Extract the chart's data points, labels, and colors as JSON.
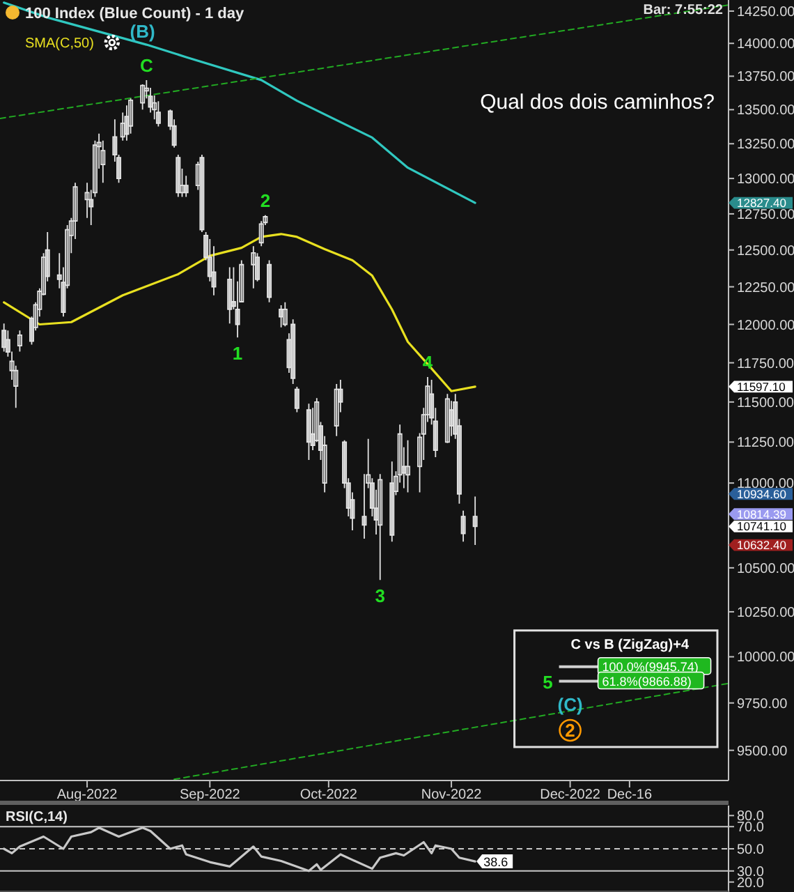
{
  "chart_data": [
    {
      "type": "candlestick",
      "title": "100 Index (Blue Count) - 1 day",
      "log": true,
      "legend": "top left",
      "xlim": [
        "2022-07-10",
        "2023-01-10"
      ],
      "xticks": [
        {
          "value": "2022-08-01",
          "label": "Aug-2022"
        },
        {
          "value": "2022-09-01",
          "label": "Sep-2022"
        },
        {
          "value": "2022-10-01",
          "label": "Oct-2022"
        },
        {
          "value": "2022-11-01",
          "label": "Nov-2022"
        },
        {
          "value": "2022-12-01",
          "label": "Dec-2022"
        },
        {
          "value": "2022-12-16",
          "label": "Dec-16"
        }
      ],
      "ylim": [
        9344,
        14337
      ],
      "yticks": [
        {
          "value": 9500,
          "label": "9500.00"
        },
        {
          "value": 9750,
          "label": "9750.00"
        },
        {
          "value": 10000,
          "label": "10000.00"
        },
        {
          "value": 10250,
          "label": "10250.00"
        },
        {
          "value": 10500,
          "label": "10500.00"
        },
        {
          "value": 11000,
          "label": "11000.00"
        },
        {
          "value": 11250,
          "label": "11250.00"
        },
        {
          "value": 11500,
          "label": "11500.00"
        },
        {
          "value": 11750,
          "label": "11750.00"
        },
        {
          "value": 12000,
          "label": "12000.00"
        },
        {
          "value": 12250,
          "label": "12250.00"
        },
        {
          "value": 12500,
          "label": "12500.00"
        },
        {
          "value": 12750,
          "label": "12750.00"
        },
        {
          "value": 13000,
          "label": "13000.00"
        },
        {
          "value": 13250,
          "label": "13250.00"
        },
        {
          "value": 13500,
          "label": "13500.00"
        },
        {
          "value": 13750,
          "label": "13750.00"
        },
        {
          "value": 14000,
          "label": "14000.00"
        },
        {
          "value": 14250,
          "label": "14250.00"
        },
        {
          "value": 12827.4,
          "label": "12827.40"
        },
        {
          "value": 11597.1,
          "label": "11597.10"
        },
        {
          "value": 10934.6,
          "label": "10934.60"
        },
        {
          "value": 10814.39,
          "label": "10814.39"
        },
        {
          "value": 10741.1,
          "label": "10741.10"
        },
        {
          "value": 10632.4,
          "label": "10632.40"
        }
      ],
      "x": [
        "2022-07-11",
        "2022-07-12",
        "2022-07-13",
        "2022-07-14",
        "2022-07-15",
        "2022-07-18",
        "2022-07-19",
        "2022-07-20",
        "2022-07-21",
        "2022-07-22",
        "2022-07-25",
        "2022-07-26",
        "2022-07-27",
        "2022-07-28",
        "2022-07-29",
        "2022-08-01",
        "2022-08-02",
        "2022-08-03",
        "2022-08-04",
        "2022-08-05",
        "2022-08-08",
        "2022-08-09",
        "2022-08-10",
        "2022-08-11",
        "2022-08-12",
        "2022-08-15",
        "2022-08-16",
        "2022-08-17",
        "2022-08-18",
        "2022-08-19",
        "2022-08-22",
        "2022-08-23",
        "2022-08-24",
        "2022-08-25",
        "2022-08-26",
        "2022-08-29",
        "2022-08-30",
        "2022-08-31",
        "2022-09-01",
        "2022-09-02",
        "2022-09-06",
        "2022-09-07",
        "2022-09-08",
        "2022-09-09",
        "2022-09-12",
        "2022-09-13",
        "2022-09-14",
        "2022-09-15",
        "2022-09-16",
        "2022-09-19",
        "2022-09-20",
        "2022-09-21",
        "2022-09-22",
        "2022-09-23",
        "2022-09-26",
        "2022-09-27",
        "2022-09-28",
        "2022-09-29",
        "2022-09-30",
        "2022-10-03",
        "2022-10-04",
        "2022-10-05",
        "2022-10-06",
        "2022-10-07",
        "2022-10-10",
        "2022-10-11",
        "2022-10-12",
        "2022-10-13",
        "2022-10-14",
        "2022-10-17",
        "2022-10-18",
        "2022-10-19",
        "2022-10-20",
        "2022-10-21",
        "2022-10-24",
        "2022-10-25",
        "2022-10-26",
        "2022-10-27",
        "2022-10-28",
        "2022-10-31",
        "2022-11-01",
        "2022-11-02",
        "2022-11-03",
        "2022-11-04",
        "2022-11-07"
      ],
      "ohlc": [
        [
          11960,
          12006,
          11822,
          11850
        ],
        [
          11900,
          11960,
          11790,
          11820
        ],
        [
          11700,
          11822,
          11641,
          11760
        ],
        [
          11600,
          11731,
          11463,
          11700
        ],
        [
          11860,
          11960,
          11822,
          11930
        ],
        [
          12040,
          12052,
          11868,
          11890
        ],
        [
          11980,
          12146,
          11960,
          12130
        ],
        [
          12100,
          12240,
          12052,
          12220
        ],
        [
          12200,
          12478,
          12193,
          12450
        ],
        [
          12500,
          12624,
          12287,
          12320
        ],
        [
          12330,
          12478,
          12240,
          12300
        ],
        [
          12280,
          12382,
          12052,
          12080
        ],
        [
          12260,
          12672,
          12240,
          12640
        ],
        [
          12600,
          12721,
          12478,
          12700
        ],
        [
          12700,
          12969,
          12575,
          12940
        ],
        [
          12850,
          12969,
          12721,
          12900
        ],
        [
          12850,
          12919,
          12672,
          12800
        ],
        [
          12900,
          13273,
          12870,
          13240
        ],
        [
          13230,
          13324,
          13070,
          13260
        ],
        [
          13100,
          13273,
          12969,
          13200
        ],
        [
          13300,
          13428,
          13120,
          13170
        ],
        [
          13150,
          13171,
          12969,
          13000
        ],
        [
          13300,
          13479,
          13273,
          13400
        ],
        [
          13450,
          13532,
          13273,
          13320
        ],
        [
          13380,
          13584,
          13324,
          13570
        ],
        [
          13550,
          13689,
          13500,
          13680
        ],
        [
          13640,
          13721,
          13584,
          13660
        ],
        [
          13600,
          13663,
          13479,
          13520
        ],
        [
          13500,
          13605,
          13428,
          13550
        ],
        [
          13480,
          13563,
          13376,
          13400
        ],
        [
          13490,
          13500,
          13350,
          13380
        ],
        [
          13380,
          13428,
          13222,
          13240
        ],
        [
          13150,
          13171,
          12870,
          12900
        ],
        [
          12900,
          13070,
          12870,
          12950
        ],
        [
          12950,
          13019,
          12870,
          12900
        ],
        [
          12950,
          13120,
          12919,
          13100
        ],
        [
          13150,
          13171,
          12624,
          12640
        ],
        [
          12600,
          12624,
          12430,
          12450
        ],
        [
          12450,
          12575,
          12287,
          12320
        ],
        [
          12350,
          12526,
          12193,
          12250
        ],
        [
          12300,
          12382,
          12006,
          12100
        ],
        [
          12150,
          12382,
          12099,
          12120
        ],
        [
          12100,
          12287,
          11914,
          12000
        ],
        [
          12150,
          12430,
          12146,
          12400
        ],
        [
          12400,
          12526,
          12240,
          12480
        ],
        [
          12450,
          12478,
          12287,
          12300
        ],
        [
          12550,
          12700,
          12526,
          12680
        ],
        [
          12690,
          12741,
          12672,
          12730
        ],
        [
          12400,
          12430,
          12146,
          12180
        ],
        [
          12100,
          12127,
          11980,
          12050
        ],
        [
          12000,
          12146,
          11988,
          12100
        ],
        [
          11900,
          11942,
          11686,
          11720
        ],
        [
          12000,
          12033,
          11614,
          11650
        ],
        [
          11580,
          11596,
          11436,
          11460
        ],
        [
          11450,
          11489,
          11140,
          11250
        ],
        [
          11300,
          11463,
          11200,
          11230
        ],
        [
          11260,
          11525,
          11250,
          11500
        ],
        [
          11350,
          11375,
          11140,
          11200
        ],
        [
          11000,
          11287,
          10944,
          11230
        ],
        [
          11350,
          11614,
          11287,
          11580
        ],
        [
          11580,
          11641,
          11436,
          11500
        ],
        [
          11250,
          11261,
          10969,
          11000
        ],
        [
          11000,
          11029,
          10801,
          10850
        ],
        [
          10900,
          10944,
          10718,
          10790
        ],
        [
          10800,
          11054,
          10669,
          10750
        ],
        [
          11000,
          11270,
          10969,
          11050
        ],
        [
          11000,
          11029,
          10801,
          10850
        ],
        [
          10850,
          10960,
          10694,
          10780
        ],
        [
          10750,
          11054,
          10430,
          11020
        ],
        [
          11000,
          11131,
          10652,
          10690
        ],
        [
          10950,
          11071,
          10927,
          11040
        ],
        [
          11050,
          11358,
          11003,
          11300
        ],
        [
          11100,
          11218,
          10969,
          11060
        ],
        [
          11050,
          11261,
          10944,
          11100
        ],
        [
          11100,
          11305,
          10944,
          11280
        ],
        [
          11300,
          11463,
          11140,
          11420
        ],
        [
          11420,
          11659,
          11375,
          11600
        ],
        [
          11550,
          11641,
          11358,
          11400
        ],
        [
          11380,
          11463,
          11157,
          11200
        ],
        [
          11250,
          11551,
          11244,
          11520
        ],
        [
          11450,
          11507,
          11287,
          11350
        ],
        [
          11500,
          11551,
          11270,
          11300
        ],
        [
          11350,
          11393,
          10876,
          10934.6
        ],
        [
          10800,
          10835,
          10652,
          10700
        ],
        [
          10800,
          10919,
          10632.4,
          10741.1
        ]
      ],
      "series": [
        {
          "name": "SMA(C,50)",
          "type": "line",
          "color": "#e8e020",
          "x": [
            "2022-07-11",
            "2022-07-20",
            "2022-07-28",
            "2022-08-10",
            "2022-08-24",
            "2022-09-01",
            "2022-09-09",
            "2022-09-14",
            "2022-09-19",
            "2022-09-23",
            "2022-09-30",
            "2022-10-07",
            "2022-10-12",
            "2022-10-17",
            "2022-10-21",
            "2022-10-27",
            "2022-11-01",
            "2022-11-07"
          ],
          "values": [
            12146,
            12000,
            12015,
            12193,
            12335,
            12460,
            12515,
            12590,
            12610,
            12590,
            12506,
            12430,
            12325,
            12099,
            11886,
            11713,
            11569,
            11597.1
          ]
        },
        {
          "type": "line",
          "color": "#30c8c0",
          "x": [
            "2022-07-11",
            "2022-07-22",
            "2022-08-16",
            "2022-08-26",
            "2022-09-14",
            "2022-09-23",
            "2022-10-12",
            "2022-10-21",
            "2022-11-07"
          ],
          "values": [
            14316,
            14200,
            13990,
            13895,
            13721,
            13566,
            13295,
            13077,
            12827.4
          ]
        },
        {
          "type": "line",
          "color": "#22aa22",
          "line_style": "dashed",
          "x": [
            "2022-07-10",
            "2023-01-10"
          ],
          "values": [
            13435,
            14298
          ]
        },
        {
          "type": "line",
          "color": "#22aa22",
          "line_style": "dashed",
          "x": [
            "2022-08-23",
            "2023-01-10"
          ],
          "values": [
            9350,
            9855
          ]
        }
      ],
      "ref_lines": [
        {
          "axis": "y",
          "value": 9945.74,
          "label": "100.0%(9945.74)",
          "color": "#d0d0d0"
        },
        {
          "axis": "y",
          "value": 9866.88,
          "label": "61.8%(9866.88)",
          "color": "#d0d0d0"
        }
      ],
      "annotations": [
        {
          "text": "(B)",
          "x": "2022-08-15",
          "y": 13980
        },
        {
          "text": "C",
          "x": "2022-08-16",
          "y": 13721
        },
        {
          "text": "2",
          "x": "2022-09-15",
          "y": 12741
        },
        {
          "text": "1",
          "x": "2022-09-08",
          "y": 11914
        },
        {
          "text": "3",
          "x": "2022-10-14",
          "y": 10430
        },
        {
          "text": "4",
          "x": "2022-10-26",
          "y": 11659
        },
        "5",
        {
          "text": "(C)",
          "x": "2022-12-01",
          "y": 9745
        },
        {
          "text": "2",
          "x": "2022-12-01",
          "y": 9605
        },
        "C vs B (ZigZag)+4",
        "Qual dos dois caminhos?",
        "Bar: 7:55:22"
      ]
    },
    {
      "type": "line",
      "title": "RSI(C,14)",
      "tick_labels": "y",
      "xlim": [
        "2022-07-10",
        "2023-01-10"
      ],
      "ylim": [
        11,
        89
      ],
      "yticks": [
        {
          "value": 20,
          "label": "20.0"
        },
        {
          "value": 30,
          "label": "30.0"
        },
        {
          "value": 50,
          "label": "50.0"
        },
        {
          "value": 70,
          "label": "70.0"
        },
        {
          "value": 80,
          "label": "80.0"
        }
      ],
      "series": [
        {
          "color": "#c8c8c8",
          "x": [
            "2022-07-11",
            "2022-07-13",
            "2022-07-15",
            "2022-07-21",
            "2022-07-26",
            "2022-07-28",
            "2022-08-02",
            "2022-08-04",
            "2022-08-09",
            "2022-08-15",
            "2022-08-17",
            "2022-08-22",
            "2022-08-25",
            "2022-08-26",
            "2022-09-01",
            "2022-09-06",
            "2022-09-12",
            "2022-09-14",
            "2022-09-19",
            "2022-09-26",
            "2022-09-28",
            "2022-09-29",
            "2022-10-04",
            "2022-10-07",
            "2022-10-12",
            "2022-10-14",
            "2022-10-18",
            "2022-10-20",
            "2022-10-25",
            "2022-10-27",
            "2022-10-28",
            "2022-11-01",
            "2022-11-03",
            "2022-11-07"
          ],
          "values": [
            50,
            46,
            52,
            61,
            50,
            61,
            65,
            69,
            61,
            69,
            66,
            50,
            53,
            45,
            38,
            34,
            52,
            43,
            39,
            30,
            36,
            31,
            45,
            40,
            32,
            42,
            46,
            44,
            56,
            46,
            53,
            50,
            42,
            38.6
          ]
        }
      ],
      "ref_lines": [
        {
          "axis": "y",
          "value": 70,
          "color": "#c8c8c8"
        },
        {
          "axis": "y",
          "value": 50,
          "color": "#c8c8c8",
          "line_style": "dashed"
        },
        {
          "axis": "y",
          "value": 30,
          "color": "#c8c8c8"
        }
      ],
      "annotations": [
        {
          "text": "38.6",
          "x": "2022-11-07",
          "y": 38.6
        }
      ]
    }
  ]
}
